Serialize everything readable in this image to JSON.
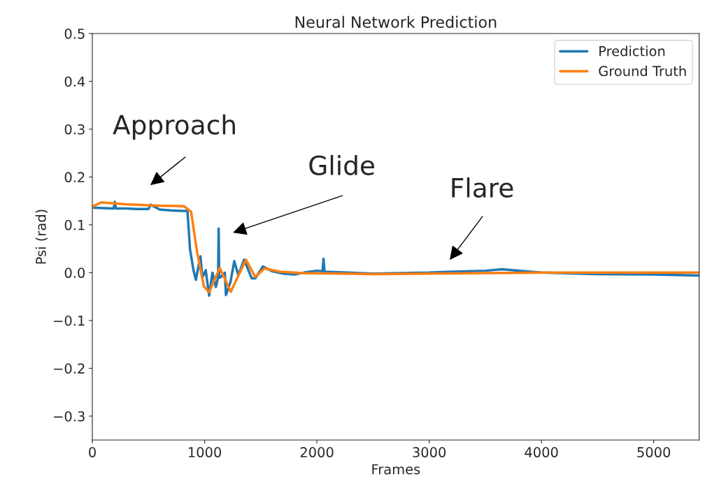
{
  "chart_data": {
    "type": "line",
    "title": "Neural Network Prediction",
    "xlabel": "Frames",
    "ylabel": "Psi (rad)",
    "xlim": [
      0,
      5405
    ],
    "ylim": [
      -0.35,
      0.5
    ],
    "xticks": [
      0,
      1000,
      2000,
      3000,
      4000,
      5000
    ],
    "yticks": [
      {
        "value": -0.3,
        "label": "−0.3"
      },
      {
        "value": -0.2,
        "label": "−0.2"
      },
      {
        "value": -0.1,
        "label": "−0.1"
      },
      {
        "value": 0,
        "label": "0.0"
      },
      {
        "value": 0.1,
        "label": "0.1"
      },
      {
        "value": 0.2,
        "label": "0.2"
      },
      {
        "value": 0.3,
        "label": "0.3"
      },
      {
        "value": 0.4,
        "label": "0.4"
      },
      {
        "value": 0.5,
        "label": "0.5"
      }
    ],
    "grid": false,
    "legend": "top right",
    "series": [
      {
        "name": "Prediction",
        "color": "#1f77b4",
        "x": [
          0,
          100,
          190,
          200,
          210,
          300,
          400,
          500,
          520,
          600,
          700,
          800,
          847,
          870,
          901,
          922,
          963,
          980,
          1010,
          1040,
          1070,
          1100,
          1120,
          1125,
          1130,
          1140,
          1180,
          1190,
          1230,
          1264,
          1300,
          1352,
          1420,
          1451,
          1520,
          1600,
          1700,
          1800,
          1900,
          2000,
          2050,
          2059,
          2068,
          2500,
          3000,
          3200,
          3500,
          3649,
          3900,
          4000,
          4500,
          5000,
          5400
        ],
        "values": [
          0.136,
          0.135,
          0.134,
          0.148,
          0.134,
          0.134,
          0.133,
          0.133,
          0.142,
          0.132,
          0.13,
          0.129,
          0.129,
          0.049,
          0.005,
          -0.015,
          0.034,
          -0.01,
          0.005,
          -0.048,
          0.0,
          -0.03,
          -0.01,
          0.092,
          -0.01,
          -0.01,
          0.0,
          -0.047,
          -0.02,
          0.024,
          -0.005,
          0.027,
          -0.012,
          -0.012,
          0.013,
          0.003,
          -0.002,
          -0.004,
          0.001,
          0.004,
          0.003,
          0.029,
          0.002,
          -0.002,
          0.0,
          0.002,
          0.004,
          0.007,
          0.002,
          0.0,
          -0.003,
          -0.004,
          -0.006
        ]
      },
      {
        "name": "Ground Truth",
        "color": "#ff7f0e",
        "x": [
          0,
          8,
          80,
          300,
          600,
          816,
          880,
          932,
          994,
          1040,
          1135,
          1233,
          1368,
          1451,
          1534,
          1669,
          1876,
          2500,
          3500,
          4000,
          5400
        ],
        "values": [
          0.136,
          0.139,
          0.147,
          0.143,
          0.14,
          0.139,
          0.127,
          0.044,
          -0.029,
          -0.041,
          0.01,
          -0.04,
          0.027,
          -0.009,
          0.009,
          0.002,
          -0.001,
          -0.003,
          -0.001,
          0.0,
          0.0
        ]
      }
    ],
    "annotations": [
      "Approach",
      "Glide",
      "Flare"
    ]
  }
}
